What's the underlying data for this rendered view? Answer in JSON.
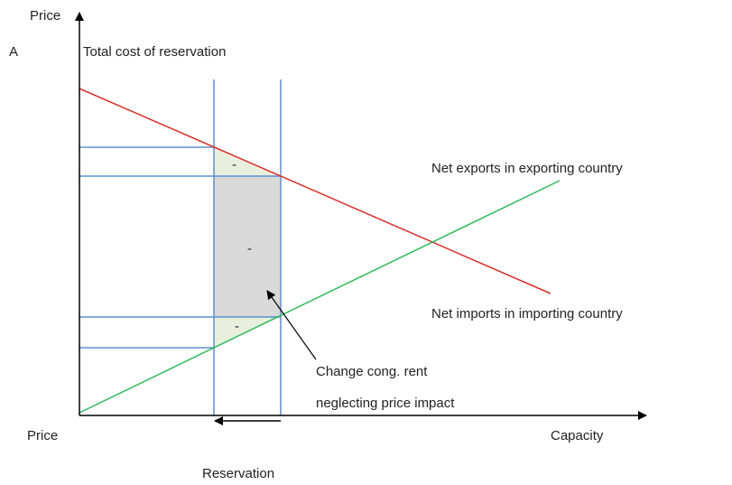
{
  "labels": {
    "y_axis_top": "Price",
    "corner": "A",
    "total_cost": "Total cost of reservation",
    "net_exports": "Net exports in exporting country",
    "net_imports": "Net imports in importing country",
    "minus_top": "-",
    "minus_middle": "-",
    "minus_bottom": "-",
    "annotation_line1": "Change cong. rent",
    "annotation_line2": "neglecting price impact",
    "y_axis_bottom": "Price",
    "x_axis": "Capacity",
    "reservation": "Reservation"
  }
}
